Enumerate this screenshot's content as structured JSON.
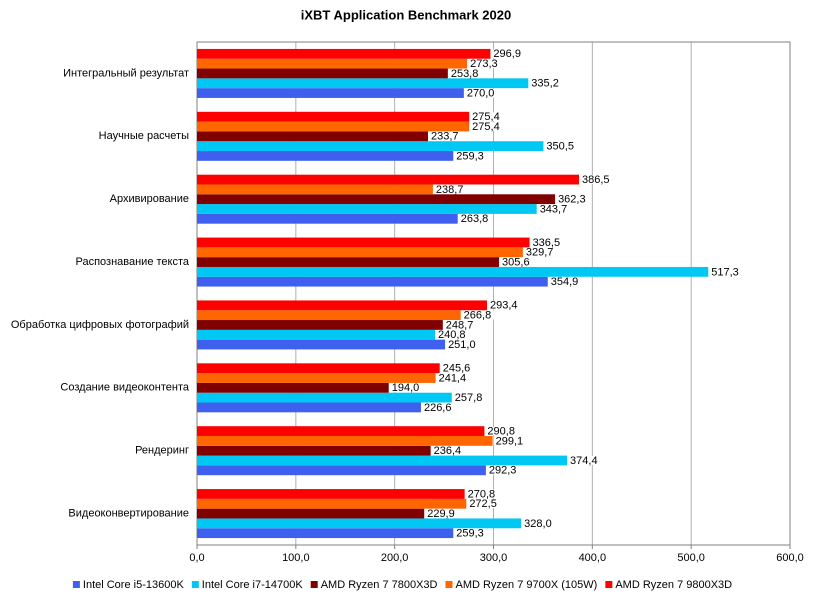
{
  "chart_data": {
    "type": "hbar",
    "title": "iXBT Application Benchmark 2020",
    "categories": [
      "Интегральный результат",
      "Научные расчеты",
      "Архивирование",
      "Распознавание текста",
      "Обработка цифровых фотографий",
      "Создание видеоконтента",
      "Рендеринг",
      "Видеоконвертирование"
    ],
    "series": [
      {
        "name": "Intel Core i5-13600K",
        "color": "#3f5fee",
        "values": [
          270.0,
          259.3,
          263.8,
          354.9,
          251.0,
          226.6,
          292.3,
          259.3
        ],
        "value_labels": [
          "270,0",
          "259,3",
          "263,8",
          "354,9",
          "251,0",
          "226,6",
          "292,3",
          "259,3"
        ]
      },
      {
        "name": "Intel Core i7-14700K",
        "color": "#00c8f4",
        "values": [
          335.2,
          350.5,
          343.7,
          517.3,
          240.8,
          257.8,
          374.4,
          328.0
        ],
        "value_labels": [
          "335,2",
          "350,5",
          "343,7",
          "517,3",
          "240,8",
          "257,8",
          "374,4",
          "328,0"
        ]
      },
      {
        "name": "AMD Ryzen 7 7800X3D",
        "color": "#800000",
        "values": [
          253.8,
          233.7,
          362.3,
          305.6,
          248.7,
          194.0,
          236.4,
          229.9
        ],
        "value_labels": [
          "253,8",
          "233,7",
          "362,3",
          "305,6",
          "248,7",
          "194,0",
          "236,4",
          "229,9"
        ]
      },
      {
        "name": "AMD Ryzen 7 9700X (105W)",
        "color": "#ff6600",
        "values": [
          273.3,
          275.4,
          238.7,
          329.7,
          266.8,
          241.4,
          299.1,
          272.5
        ],
        "value_labels": [
          "273,3",
          "275,4",
          "238,7",
          "329,7",
          "266,8",
          "241,4",
          "299,1",
          "272,5"
        ]
      },
      {
        "name": "AMD Ryzen 7 9800X3D",
        "color": "#ff0000",
        "values": [
          296.9,
          275.4,
          386.5,
          336.5,
          293.4,
          245.6,
          290.8,
          270.8
        ],
        "value_labels": [
          "296,9",
          "275,4",
          "386,5",
          "336,5",
          "293,4",
          "245,6",
          "290,8",
          "270,8"
        ]
      }
    ],
    "xlim": [
      0,
      600
    ],
    "xticks": [
      {
        "value": 0,
        "label": "0,0"
      },
      {
        "value": 100,
        "label": "100,0"
      },
      {
        "value": 200,
        "label": "200,0"
      },
      {
        "value": 300,
        "label": "300,0"
      },
      {
        "value": 400,
        "label": "400,0"
      },
      {
        "value": 500,
        "label": "500,0"
      },
      {
        "value": 600,
        "label": "600,0"
      }
    ],
    "grid": true,
    "legend": "bottom"
  }
}
